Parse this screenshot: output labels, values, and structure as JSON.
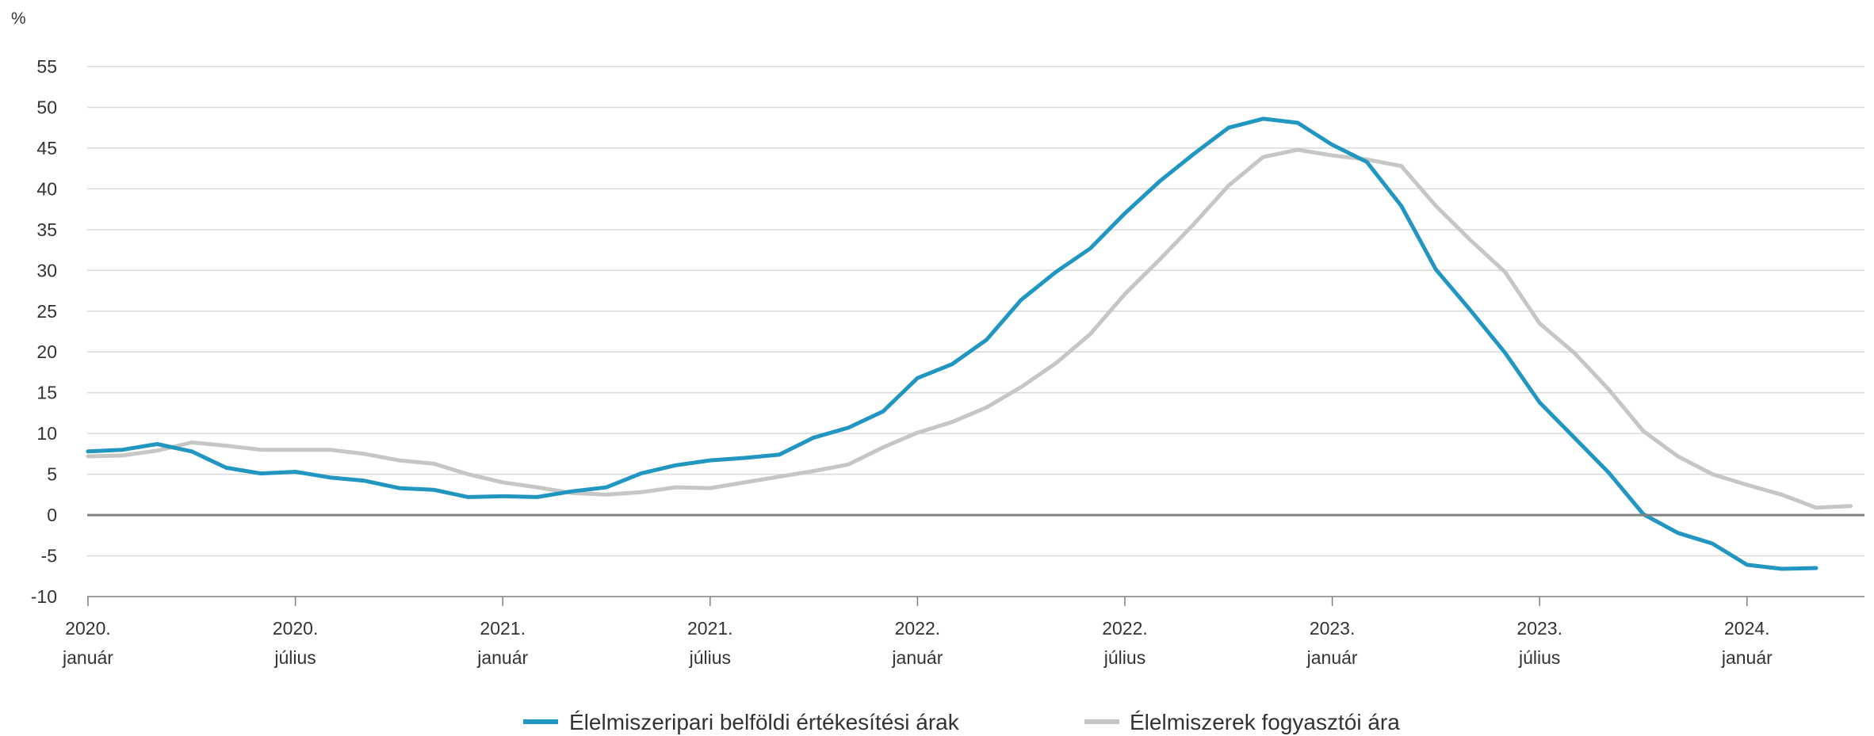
{
  "chart_data": {
    "type": "line",
    "unit_label": "%",
    "ylim": [
      -10,
      55
    ],
    "y_ticks": [
      -10,
      -5,
      0,
      5,
      10,
      15,
      20,
      25,
      30,
      35,
      40,
      45,
      50,
      55
    ],
    "grid": true,
    "legend_position": "bottom-center",
    "x_ticks": [
      {
        "month_index": 0,
        "line1": "2020.",
        "line2": "január"
      },
      {
        "month_index": 6,
        "line1": "2020.",
        "line2": "július"
      },
      {
        "month_index": 12,
        "line1": "2021.",
        "line2": "január"
      },
      {
        "month_index": 18,
        "line1": "2021.",
        "line2": "július"
      },
      {
        "month_index": 24,
        "line1": "2022.",
        "line2": "január"
      },
      {
        "month_index": 30,
        "line1": "2022.",
        "line2": "július"
      },
      {
        "month_index": 36,
        "line1": "2023.",
        "line2": "január"
      },
      {
        "month_index": 42,
        "line1": "2023.",
        "line2": "július"
      },
      {
        "month_index": 48,
        "line1": "2024.",
        "line2": "január"
      }
    ],
    "series": [
      {
        "name": "Élelmiszeripari belföldi értékesítési árak",
        "color": "#2196c0",
        "values": [
          7.8,
          8.0,
          8.7,
          7.8,
          5.8,
          5.1,
          5.3,
          4.6,
          4.2,
          3.3,
          3.1,
          2.2,
          2.3,
          2.2,
          2.9,
          3.4,
          5.1,
          6.1,
          6.7,
          7.0,
          7.4,
          9.5,
          10.7,
          12.7,
          16.8,
          18.5,
          21.5,
          26.4,
          29.8,
          32.7,
          37.0,
          40.9,
          44.3,
          47.5,
          48.6,
          48.1,
          45.4,
          43.3,
          37.9,
          30.1,
          25.1,
          19.9,
          13.8,
          9.5,
          5.2,
          0.1,
          -2.2,
          -3.5,
          -6.1,
          -6.6,
          -6.5
        ]
      },
      {
        "name": "Élelmiszerek fogyasztói ára",
        "color": "#c6c6c6",
        "values": [
          7.2,
          7.3,
          7.9,
          8.9,
          8.5,
          8.0,
          8.0,
          8.0,
          7.5,
          6.7,
          6.3,
          5.0,
          4.0,
          3.4,
          2.7,
          2.5,
          2.8,
          3.4,
          3.3,
          4.0,
          4.7,
          5.4,
          6.2,
          8.3,
          10.1,
          11.4,
          13.2,
          15.7,
          18.6,
          22.2,
          27.1,
          31.3,
          35.7,
          40.4,
          43.9,
          44.8,
          44.1,
          43.6,
          42.8,
          37.9,
          33.7,
          29.8,
          23.5,
          19.9,
          15.4,
          10.3,
          7.2,
          5.0,
          3.7,
          2.5,
          0.9,
          1.1
        ]
      }
    ]
  }
}
